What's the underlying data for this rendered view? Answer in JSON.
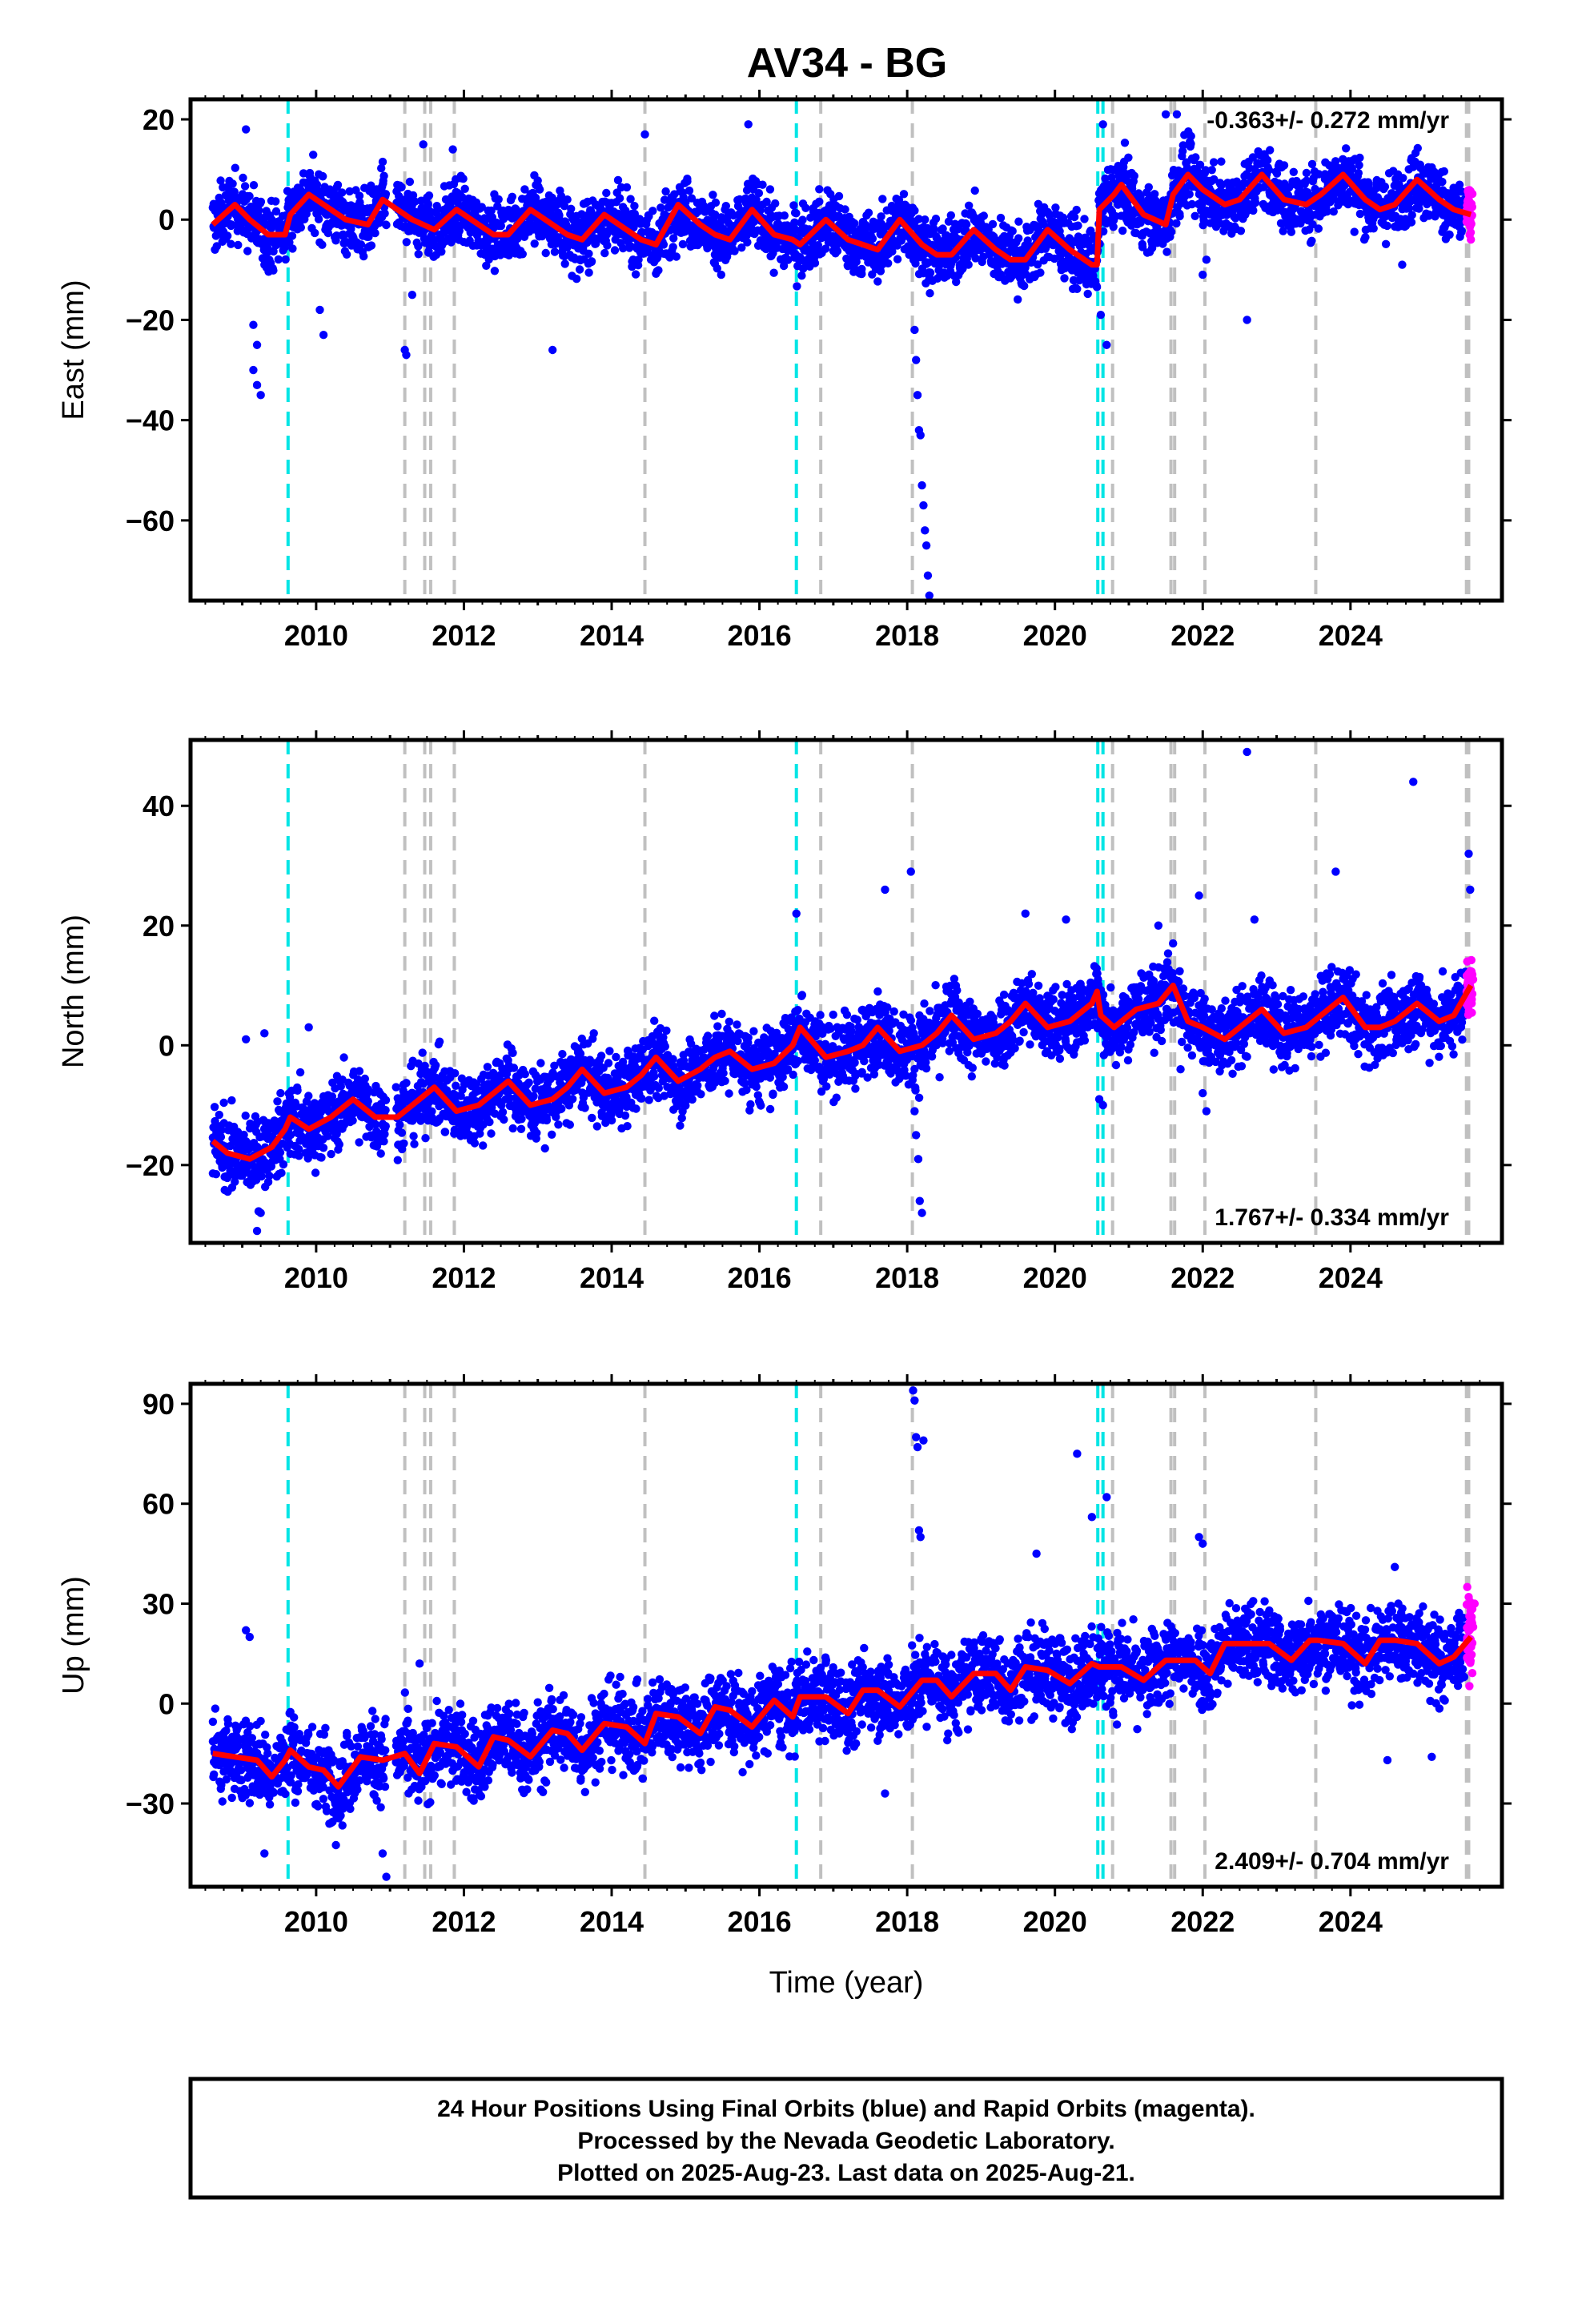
{
  "title": "AV34 - BG",
  "footer": {
    "line1": "24 Hour Positions Using Final Orbits (blue) and Rapid Orbits (magenta).",
    "line2": "Processed by the Nevada Geodetic Laboratory.",
    "line3": "Plotted on 2025-Aug-23. Last data on 2025-Aug-21."
  },
  "colors": {
    "final_orbit_points": "#0000ff",
    "rapid_orbit_points": "#ff00ff",
    "model_line": "#ff0000",
    "equipment_change_lines": "#00e5e5",
    "other_event_lines": "#c0c0c0"
  },
  "events": {
    "equipment_changes": [
      2009.62,
      2016.5,
      2020.58,
      2020.65
    ],
    "other": [
      2011.2,
      2011.47,
      2011.55,
      2011.87,
      2014.45,
      2016.83,
      2018.07,
      2020.78,
      2021.57,
      2021.62,
      2022.03,
      2023.53,
      2025.57,
      2025.6
    ]
  },
  "chart_data": [
    {
      "type": "scatter",
      "name": "east",
      "xlabel": "",
      "ylabel": "East (mm)",
      "xlim": [
        2008.3,
        2026.05
      ],
      "ylim": [
        -76,
        24
      ],
      "xticks": [
        2010,
        2012,
        2014,
        2016,
        2018,
        2020,
        2022,
        2024
      ],
      "yticks": [
        20,
        0,
        -20,
        -40,
        -60
      ],
      "rate": "-0.363+/- 0.272 mm/yr",
      "rate_position": "top-right",
      "model": {
        "x": [
          2008.6,
          2008.9,
          2009.1,
          2009.35,
          2009.58,
          2009.65,
          2009.9,
          2010.2,
          2010.4,
          2010.7,
          2010.9,
          2011.3,
          2011.6,
          2011.9,
          2012.2,
          2012.4,
          2012.6,
          2012.9,
          2013.2,
          2013.4,
          2013.6,
          2013.9,
          2014.2,
          2014.4,
          2014.6,
          2014.9,
          2015.2,
          2015.4,
          2015.6,
          2015.9,
          2016.2,
          2016.45,
          2016.55,
          2016.9,
          2017.2,
          2017.4,
          2017.6,
          2017.9,
          2018.2,
          2018.4,
          2018.6,
          2018.9,
          2019.2,
          2019.4,
          2019.6,
          2019.9,
          2020.2,
          2020.5,
          2020.57,
          2020.6,
          2020.8,
          2020.9,
          2021.2,
          2021.5,
          2021.6,
          2021.8,
          2022.0,
          2022.3,
          2022.5,
          2022.8,
          2023.1,
          2023.4,
          2023.6,
          2023.9,
          2024.2,
          2024.4,
          2024.6,
          2024.9,
          2025.2,
          2025.4,
          2025.63
        ],
        "y": [
          -1,
          3,
          0,
          -3,
          -3,
          1,
          5,
          2,
          0,
          -1,
          4,
          0,
          -2,
          2,
          -1,
          -3,
          -3,
          2,
          -1,
          -3,
          -4,
          1,
          -2,
          -4,
          -5,
          3,
          -1,
          -3,
          -4,
          2,
          -3,
          -4,
          -5,
          0,
          -4,
          -5,
          -6,
          0,
          -5,
          -7,
          -7,
          -2,
          -6,
          -8,
          -8,
          -2,
          -6,
          -9,
          -9,
          2,
          5,
          7,
          1,
          -1,
          5,
          9,
          6,
          3,
          4,
          9,
          4,
          3,
          5,
          9,
          4,
          2,
          3,
          8,
          4,
          2,
          1
        ]
      },
      "outliers_final": [
        [
          2009.05,
          18
        ],
        [
          2009.15,
          -21
        ],
        [
          2009.2,
          -25
        ],
        [
          2009.15,
          -30
        ],
        [
          2009.2,
          -33
        ],
        [
          2009.25,
          -35
        ],
        [
          2009.3,
          -9
        ],
        [
          2010.05,
          -18
        ],
        [
          2010.1,
          -23
        ],
        [
          2011.2,
          -26
        ],
        [
          2011.22,
          -27
        ],
        [
          2011.3,
          -15
        ],
        [
          2011.45,
          15
        ],
        [
          2011.85,
          14
        ],
        [
          2013.2,
          -26
        ],
        [
          2013.4,
          4
        ],
        [
          2014.45,
          17
        ],
        [
          2015.85,
          19
        ],
        [
          2017.4,
          -1
        ],
        [
          2018.1,
          -22
        ],
        [
          2018.12,
          -28
        ],
        [
          2018.14,
          -35
        ],
        [
          2018.16,
          -42
        ],
        [
          2018.18,
          -43
        ],
        [
          2018.2,
          -53
        ],
        [
          2018.22,
          -57
        ],
        [
          2018.24,
          -62
        ],
        [
          2018.26,
          -65
        ],
        [
          2018.28,
          -71
        ],
        [
          2018.3,
          -75
        ],
        [
          2020.65,
          19
        ],
        [
          2020.62,
          -19
        ],
        [
          2020.7,
          -25
        ],
        [
          2021.5,
          21
        ],
        [
          2021.65,
          21
        ],
        [
          2022.0,
          -11
        ],
        [
          2022.05,
          -8
        ],
        [
          2022.6,
          -20
        ],
        [
          2024.7,
          -9
        ]
      ]
    },
    {
      "type": "scatter",
      "name": "north",
      "xlabel": "",
      "ylabel": "North (mm)",
      "xlim": [
        2008.3,
        2026.05
      ],
      "ylim": [
        -33,
        51
      ],
      "xticks": [
        2010,
        2012,
        2014,
        2016,
        2018,
        2020,
        2022,
        2024
      ],
      "yticks": [
        40,
        20,
        0,
        -20
      ],
      "rate": "1.767+/- 0.334 mm/yr",
      "rate_position": "bottom-right",
      "model": {
        "x": [
          2008.6,
          2008.8,
          2009.1,
          2009.4,
          2009.58,
          2009.65,
          2009.9,
          2010.2,
          2010.5,
          2010.8,
          2011.1,
          2011.4,
          2011.6,
          2011.9,
          2012.2,
          2012.4,
          2012.6,
          2012.9,
          2013.2,
          2013.4,
          2013.6,
          2013.9,
          2014.2,
          2014.4,
          2014.6,
          2014.9,
          2015.2,
          2015.4,
          2015.6,
          2015.9,
          2016.2,
          2016.45,
          2016.55,
          2016.9,
          2017.2,
          2017.4,
          2017.6,
          2017.9,
          2018.2,
          2018.4,
          2018.6,
          2018.9,
          2019.2,
          2019.4,
          2019.6,
          2019.9,
          2020.2,
          2020.5,
          2020.57,
          2020.62,
          2020.8,
          2021.1,
          2021.4,
          2021.6,
          2021.8,
          2022.0,
          2022.3,
          2022.5,
          2022.8,
          2023.1,
          2023.4,
          2023.6,
          2023.9,
          2024.2,
          2024.4,
          2024.6,
          2024.9,
          2025.2,
          2025.4,
          2025.63
        ],
        "y": [
          -16,
          -18,
          -19,
          -17,
          -14,
          -12,
          -14,
          -12,
          -9,
          -12,
          -12,
          -9,
          -7,
          -11,
          -10,
          -8,
          -6,
          -10,
          -9,
          -7,
          -4,
          -8,
          -7,
          -5,
          -2,
          -6,
          -4,
          -2,
          -1,
          -4,
          -3,
          0,
          3,
          -2,
          -1,
          0,
          3,
          -1,
          0,
          2,
          5,
          1,
          2,
          4,
          7,
          3,
          4,
          7,
          9,
          5,
          3,
          6,
          7,
          10,
          4,
          3,
          1,
          3,
          6,
          2,
          3,
          5,
          8,
          3,
          3,
          4,
          7,
          4,
          5,
          10
        ]
      },
      "outliers_final": [
        [
          2009.05,
          1
        ],
        [
          2009.2,
          -31
        ],
        [
          2009.25,
          -28
        ],
        [
          2009.3,
          2
        ],
        [
          2009.9,
          3
        ],
        [
          2018.05,
          29
        ],
        [
          2018.1,
          -11
        ],
        [
          2018.12,
          -15
        ],
        [
          2018.15,
          -19
        ],
        [
          2018.17,
          -26
        ],
        [
          2018.2,
          -28
        ],
        [
          2016.5,
          22
        ],
        [
          2017.7,
          26
        ],
        [
          2019.6,
          22
        ],
        [
          2020.15,
          21
        ],
        [
          2020.6,
          -9
        ],
        [
          2020.65,
          -10
        ],
        [
          2021.4,
          20
        ],
        [
          2021.7,
          -4
        ],
        [
          2021.95,
          25
        ],
        [
          2022.0,
          -8
        ],
        [
          2022.05,
          -11
        ],
        [
          2022.6,
          49
        ],
        [
          2022.7,
          21
        ],
        [
          2023.8,
          29
        ],
        [
          2024.85,
          44
        ],
        [
          2025.6,
          32
        ],
        [
          2025.62,
          26
        ]
      ],
      "outliers_rapid": [
        [
          2025.58,
          14
        ],
        [
          2025.6,
          12
        ],
        [
          2025.62,
          9
        ],
        [
          2025.64,
          7
        ],
        [
          2025.66,
          11
        ]
      ]
    },
    {
      "type": "scatter",
      "name": "up",
      "xlabel": "Time (year)",
      "ylabel": "Up (mm)",
      "xlim": [
        2008.3,
        2026.05
      ],
      "ylim": [
        -55,
        96
      ],
      "xticks": [
        2010,
        2012,
        2014,
        2016,
        2018,
        2020,
        2022,
        2024
      ],
      "yticks": [
        90,
        60,
        30,
        0,
        -30
      ],
      "rate": "2.409+/- 0.704 mm/yr",
      "rate_position": "bottom-right",
      "model": {
        "x": [
          2008.6,
          2008.9,
          2009.2,
          2009.4,
          2009.58,
          2009.65,
          2009.9,
          2010.1,
          2010.3,
          2010.6,
          2010.9,
          2011.2,
          2011.4,
          2011.6,
          2011.9,
          2012.2,
          2012.4,
          2012.6,
          2012.9,
          2013.2,
          2013.4,
          2013.6,
          2013.9,
          2014.2,
          2014.45,
          2014.6,
          2014.9,
          2015.2,
          2015.4,
          2015.6,
          2015.9,
          2016.2,
          2016.45,
          2016.55,
          2016.9,
          2017.2,
          2017.4,
          2017.6,
          2017.9,
          2018.2,
          2018.4,
          2018.6,
          2018.9,
          2019.2,
          2019.4,
          2019.6,
          2019.9,
          2020.2,
          2020.5,
          2020.6,
          2020.9,
          2021.2,
          2021.5,
          2021.6,
          2021.9,
          2022.1,
          2022.3,
          2022.6,
          2022.9,
          2023.2,
          2023.45,
          2023.55,
          2023.9,
          2024.2,
          2024.4,
          2024.6,
          2024.9,
          2025.2,
          2025.4,
          2025.63
        ],
        "y": [
          -15,
          -16,
          -17,
          -22,
          -17,
          -14,
          -19,
          -20,
          -25,
          -16,
          -17,
          -15,
          -21,
          -12,
          -13,
          -19,
          -10,
          -11,
          -16,
          -8,
          -9,
          -14,
          -6,
          -7,
          -12,
          -3,
          -4,
          -9,
          -1,
          -2,
          -7,
          1,
          -4,
          2,
          2,
          -3,
          4,
          4,
          -1,
          7,
          7,
          2,
          9,
          9,
          4,
          11,
          10,
          6,
          12,
          11,
          11,
          7,
          13,
          13,
          13,
          9,
          18,
          18,
          18,
          13,
          19,
          19,
          18,
          12,
          19,
          19,
          18,
          12,
          14,
          20
        ]
      },
      "outliers_final": [
        [
          2009.05,
          22
        ],
        [
          2009.1,
          20
        ],
        [
          2009.3,
          -45
        ],
        [
          2010.9,
          -45
        ],
        [
          2010.95,
          -52
        ],
        [
          2011.4,
          12
        ],
        [
          2018.08,
          94
        ],
        [
          2018.1,
          91
        ],
        [
          2018.12,
          80
        ],
        [
          2018.14,
          77
        ],
        [
          2018.16,
          52
        ],
        [
          2018.18,
          50
        ],
        [
          2018.22,
          79
        ],
        [
          2017.7,
          -27
        ],
        [
          2019.75,
          45
        ],
        [
          2020.3,
          75
        ],
        [
          2020.5,
          56
        ],
        [
          2020.7,
          62
        ],
        [
          2021.95,
          50
        ],
        [
          2022.0,
          48
        ],
        [
          2024.6,
          41
        ],
        [
          2024.5,
          -17
        ],
        [
          2025.1,
          -16
        ]
      ],
      "outliers_rapid": [
        [
          2025.58,
          35
        ],
        [
          2025.6,
          32
        ],
        [
          2025.62,
          29
        ],
        [
          2025.64,
          26
        ],
        [
          2025.66,
          23
        ],
        [
          2025.68,
          30
        ]
      ]
    }
  ]
}
